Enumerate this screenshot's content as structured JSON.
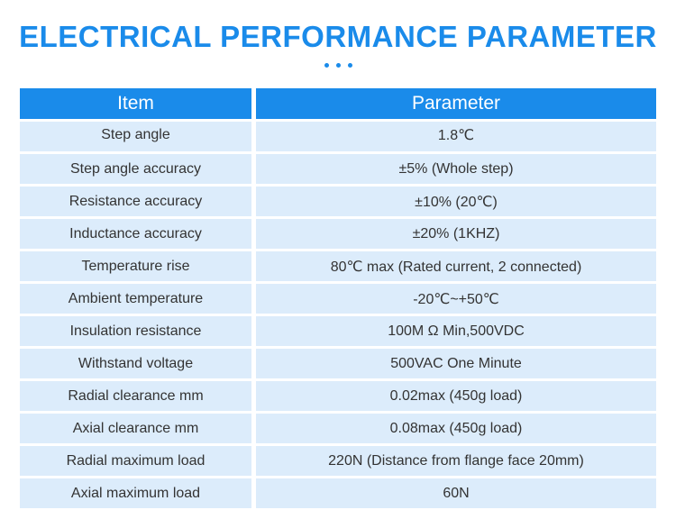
{
  "title": "ELECTRICAL PERFORMANCE PARAMETER",
  "accent_color": "#1a8bea",
  "row_color": "#dcecfb",
  "table": {
    "headers": {
      "item": "Item",
      "parameter": "Parameter"
    },
    "rows": [
      {
        "item": "Step angle",
        "parameter": "1.8℃"
      },
      {
        "item": "Step angle accuracy",
        "parameter": "±5% (Whole step)"
      },
      {
        "item": "Resistance accuracy",
        "parameter": "±10% (20℃)"
      },
      {
        "item": "Inductance accuracy",
        "parameter": "±20% (1KHZ)"
      },
      {
        "item": "Temperature rise",
        "parameter": "80℃ max (Rated current, 2 connected)"
      },
      {
        "item": "Ambient temperature",
        "parameter": "-20℃~+50℃"
      },
      {
        "item": "Insulation resistance",
        "parameter": "100M Ω Min,500VDC"
      },
      {
        "item": "Withstand voltage",
        "parameter": "500VAC One Minute"
      },
      {
        "item": "Radial clearance mm",
        "parameter": "0.02max (450g load)"
      },
      {
        "item": "Axial clearance mm",
        "parameter": "0.08max (450g load)"
      },
      {
        "item": "Radial maximum load",
        "parameter": "220N (Distance from flange face 20mm)"
      },
      {
        "item": "Axial maximum load",
        "parameter": "60N"
      }
    ]
  }
}
